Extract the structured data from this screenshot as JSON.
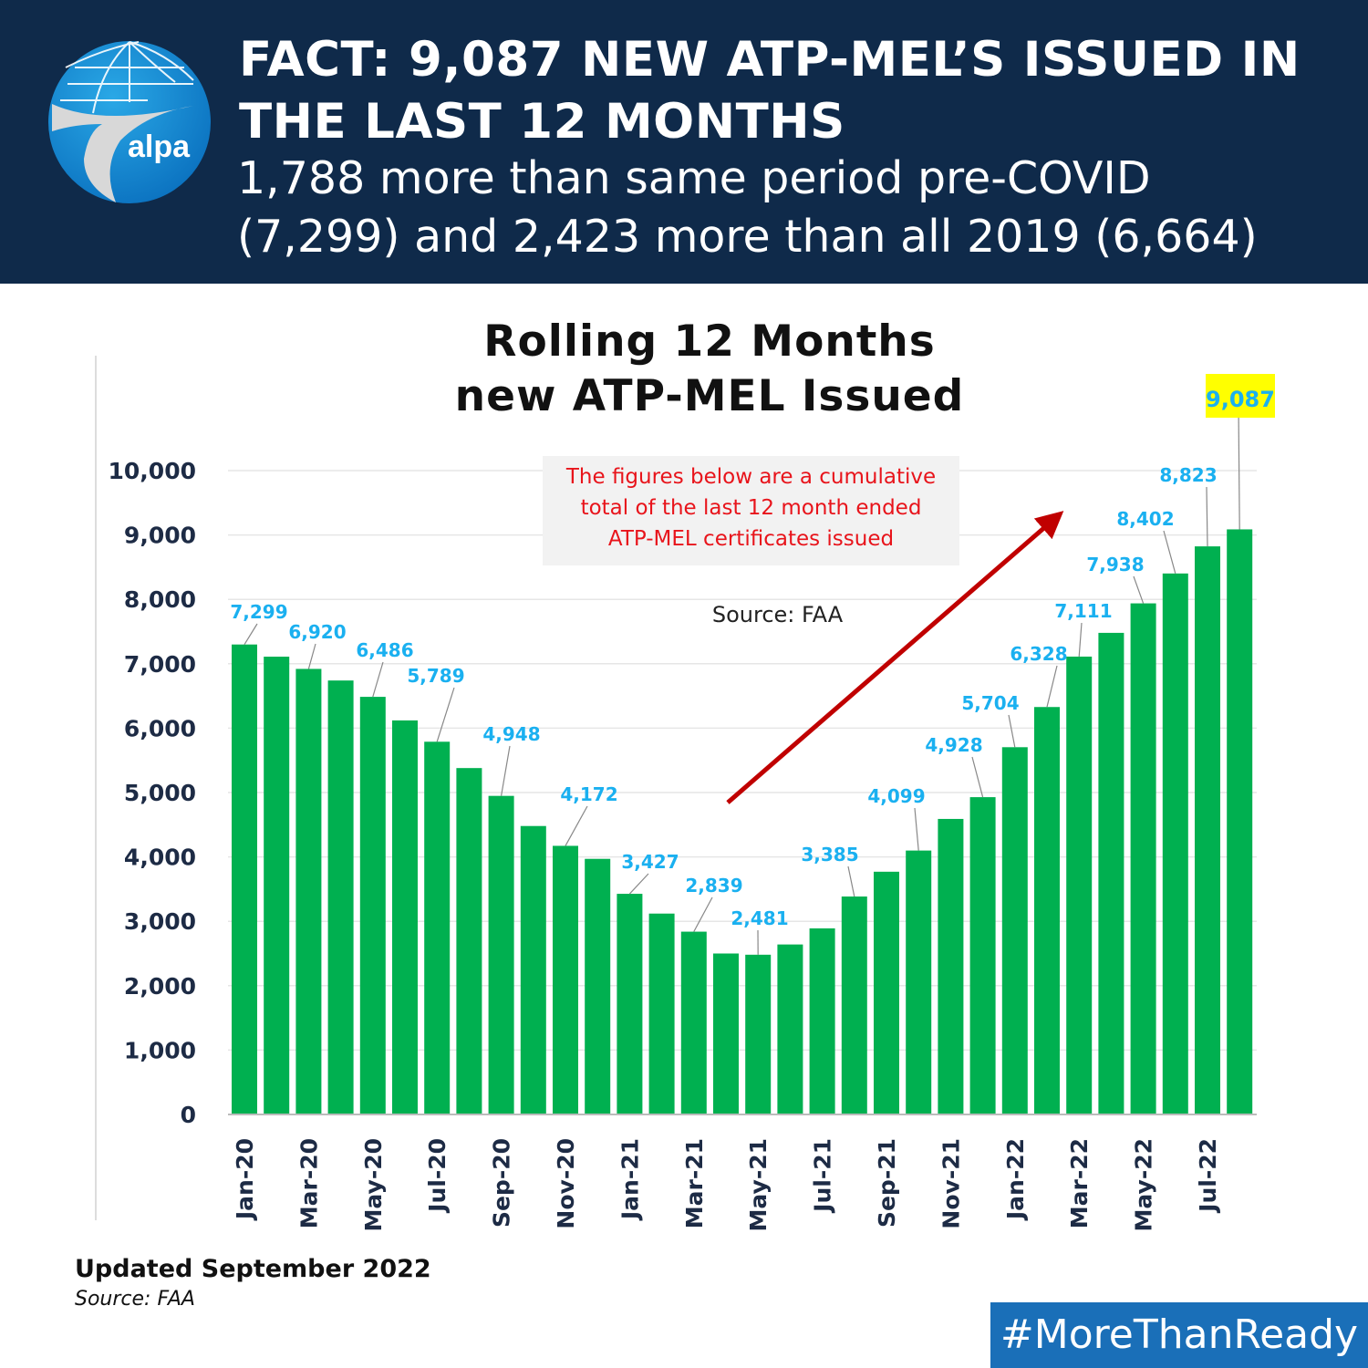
{
  "header": {
    "title_line1": "FACT: 9,087 NEW ATP-MEL’S ISSUED IN",
    "title_line2": "THE LAST 12 MONTHS",
    "subtitle_line1": "1,788 more than same period pre-COVID",
    "subtitle_line2": "(7,299) and 2,423 more than all 2019 (6,664)",
    "logo_text": "alpa"
  },
  "annotation": {
    "line1": "The figures below are a cumulative",
    "line2": "total of the last 12 month ended",
    "line3": "ATP-MEL certificates issued",
    "source": "Source: FAA"
  },
  "footer": {
    "updated": "Updated September 2022",
    "source": "Source: FAA",
    "hashtag": "#MoreThanReady"
  },
  "colors": {
    "header_bg": "#0f2a4a",
    "bar": "#00b050",
    "label": "#1ab0f0",
    "arrow": "#c00000",
    "highlight": "#ffff00",
    "hashtag_bg": "#1a6fb8"
  },
  "chart_data": {
    "type": "bar",
    "title_line1": "Rolling 12 Months",
    "title_line2": "new ATP-MEL Issued",
    "xlabel": "",
    "ylabel": "",
    "ylim": [
      0,
      10000
    ],
    "yticks": [
      "0",
      "1,000",
      "2,000",
      "3,000",
      "4,000",
      "5,000",
      "6,000",
      "7,000",
      "8,000",
      "9,000",
      "10,000"
    ],
    "grid": true,
    "categories": [
      "Jan-20",
      "Feb-20",
      "Mar-20",
      "Apr-20",
      "May-20",
      "Jun-20",
      "Jul-20",
      "Aug-20",
      "Sep-20",
      "Oct-20",
      "Nov-20",
      "Dec-20",
      "Jan-21",
      "Feb-21",
      "Mar-21",
      "Apr-21",
      "May-21",
      "Jun-21",
      "Jul-21",
      "Aug-21",
      "Sep-21",
      "Oct-21",
      "Nov-21",
      "Dec-21",
      "Jan-22",
      "Feb-22",
      "Mar-22",
      "Apr-22",
      "May-22",
      "Jun-22",
      "Jul-22",
      "Aug-22"
    ],
    "xtick_labels": [
      "Jan-20",
      "Mar-20",
      "May-20",
      "Jul-20",
      "Sep-20",
      "Nov-20",
      "Jan-21",
      "Mar-21",
      "May-21",
      "Jul-21",
      "Sep-21",
      "Nov-21",
      "Jan-22",
      "Mar-22",
      "May-22",
      "Jul-22"
    ],
    "values": [
      7299,
      7110,
      6920,
      6740,
      6486,
      6120,
      5789,
      5380,
      4948,
      4480,
      4172,
      3970,
      3427,
      3120,
      2839,
      2500,
      2481,
      2640,
      2890,
      3385,
      3770,
      4099,
      4590,
      4928,
      5704,
      6328,
      7111,
      7480,
      7938,
      8402,
      8823,
      9087
    ],
    "data_labels": [
      {
        "index": 0,
        "text": "7,299"
      },
      {
        "index": 2,
        "text": "6,920"
      },
      {
        "index": 4,
        "text": "6,486"
      },
      {
        "index": 6,
        "text": "5,789"
      },
      {
        "index": 8,
        "text": "4,948"
      },
      {
        "index": 10,
        "text": "4,172"
      },
      {
        "index": 12,
        "text": "3,427"
      },
      {
        "index": 14,
        "text": "2,839"
      },
      {
        "index": 16,
        "text": "2,481"
      },
      {
        "index": 19,
        "text": "3,385"
      },
      {
        "index": 21,
        "text": "4,099"
      },
      {
        "index": 23,
        "text": "4,928"
      },
      {
        "index": 24,
        "text": "5,704"
      },
      {
        "index": 25,
        "text": "6,328"
      },
      {
        "index": 26,
        "text": "7,111"
      },
      {
        "index": 28,
        "text": "7,938"
      },
      {
        "index": 29,
        "text": "8,402"
      },
      {
        "index": 30,
        "text": "8,823"
      },
      {
        "index": 31,
        "text": "9,087",
        "highlight": true
      }
    ]
  }
}
